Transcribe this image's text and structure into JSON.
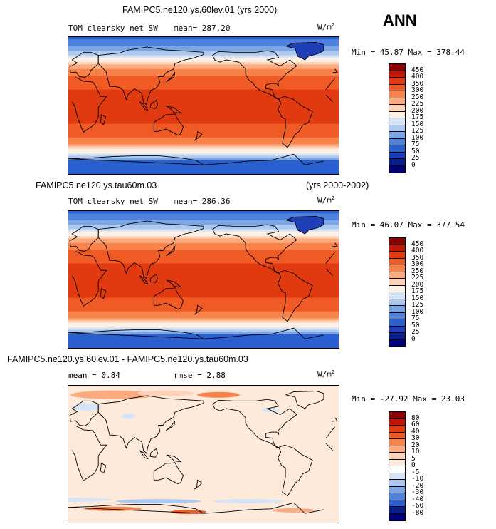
{
  "season": "ANN",
  "panels": [
    {
      "id": "top",
      "case_title": "FAMIPC5.ne120.ys.60lev.01 (yrs 2000)",
      "years": "",
      "field": "TOM clearsky net SW",
      "stats": "mean= 287.20",
      "rmse": "",
      "units": "W/m",
      "units_exp": "2",
      "minmax": "Min =  45.87 Max = 378.44"
    },
    {
      "id": "middle",
      "case_title": "FAMIPC5.ne120.ys.tau60m.03",
      "years": "(yrs 2000-2002)",
      "field": "TOM clearsky net SW",
      "stats": "mean= 286.36",
      "rmse": "",
      "units": "W/m",
      "units_exp": "2",
      "minmax": "Min =  46.07 Max = 377.54"
    },
    {
      "id": "bottom",
      "case_title": "FAMIPC5.ne120.ys.60lev.01 - FAMIPC5.ne120.ys.tau60m.03",
      "years": "",
      "field": "",
      "stats": "mean =   0.84",
      "rmse": "rmse =   2.88",
      "units": "W/m",
      "units_exp": "2",
      "minmax": "Min = -27.92 Max =  23.03"
    }
  ],
  "chart_data": [
    {
      "type": "heatmap",
      "title": "FAMIPC5.ne120.ys.60lev.01 (yrs 2000)",
      "variable": "TOM clearsky net SW",
      "units": "W/m2",
      "mean": 287.2,
      "min": 45.87,
      "max": 378.44,
      "colorbar_levels": [
        "450",
        "400",
        "350",
        "300",
        "250",
        "225",
        "200",
        "175",
        "150",
        "125",
        "100",
        "75",
        "50",
        "25",
        "0"
      ],
      "colorbar_colors": [
        "#8b0000",
        "#c21807",
        "#e23a10",
        "#f05a24",
        "#f7834b",
        "#fcab80",
        "#fdd2b8",
        "#fdf1e6",
        "#d6e4f7",
        "#adc9f0",
        "#7ba6e6",
        "#4f82dc",
        "#2a5fd0",
        "#1f3fb8",
        "#0a1f8a",
        "#00007a"
      ],
      "zonal_profile_wm2": [
        [
          -90,
          60
        ],
        [
          -75,
          90
        ],
        [
          -65,
          150
        ],
        [
          -55,
          225
        ],
        [
          -45,
          290
        ],
        [
          -35,
          330
        ],
        [
          -20,
          355
        ],
        [
          0,
          362
        ],
        [
          20,
          355
        ],
        [
          35,
          320
        ],
        [
          45,
          270
        ],
        [
          55,
          215
        ],
        [
          65,
          160
        ],
        [
          75,
          110
        ],
        [
          90,
          70
        ]
      ]
    },
    {
      "type": "heatmap",
      "title": "FAMIPC5.ne120.ys.tau60m.03",
      "years": "(yrs 2000-2002)",
      "variable": "TOM clearsky net SW",
      "units": "W/m2",
      "mean": 286.36,
      "min": 46.07,
      "max": 377.54,
      "colorbar_levels": [
        "450",
        "400",
        "350",
        "300",
        "250",
        "225",
        "200",
        "175",
        "150",
        "125",
        "100",
        "75",
        "50",
        "25",
        "0"
      ],
      "colorbar_colors": [
        "#8b0000",
        "#c21807",
        "#e23a10",
        "#f05a24",
        "#f7834b",
        "#fcab80",
        "#fdd2b8",
        "#fdf1e6",
        "#d6e4f7",
        "#adc9f0",
        "#7ba6e6",
        "#4f82dc",
        "#2a5fd0",
        "#1f3fb8",
        "#0a1f8a",
        "#00007a"
      ],
      "zonal_profile_wm2": [
        [
          -90,
          60
        ],
        [
          -75,
          90
        ],
        [
          -65,
          150
        ],
        [
          -55,
          225
        ],
        [
          -45,
          290
        ],
        [
          -35,
          330
        ],
        [
          -20,
          355
        ],
        [
          0,
          361
        ],
        [
          20,
          355
        ],
        [
          35,
          320
        ],
        [
          45,
          270
        ],
        [
          55,
          215
        ],
        [
          65,
          160
        ],
        [
          75,
          110
        ],
        [
          90,
          70
        ]
      ]
    },
    {
      "type": "heatmap",
      "title": "FAMIPC5.ne120.ys.60lev.01 - FAMIPC5.ne120.ys.tau60m.03",
      "units": "W/m2",
      "mean": 0.84,
      "rmse": 2.88,
      "min": -27.92,
      "max": 23.03,
      "colorbar_levels": [
        "80",
        "60",
        "40",
        "30",
        "20",
        "10",
        "5",
        "0",
        "-5",
        "-10",
        "-20",
        "-30",
        "-40",
        "-60",
        "-80"
      ],
      "colorbar_colors": [
        "#8b0000",
        "#c21807",
        "#e23a10",
        "#f05a24",
        "#f7834b",
        "#fcab80",
        "#fdd2b8",
        "#fdeadb",
        "#ffffff",
        "#d6e4f7",
        "#adc9f0",
        "#7ba6e6",
        "#4f82dc",
        "#2a5fd0",
        "#0a1f8a",
        "#00007a"
      ]
    }
  ]
}
